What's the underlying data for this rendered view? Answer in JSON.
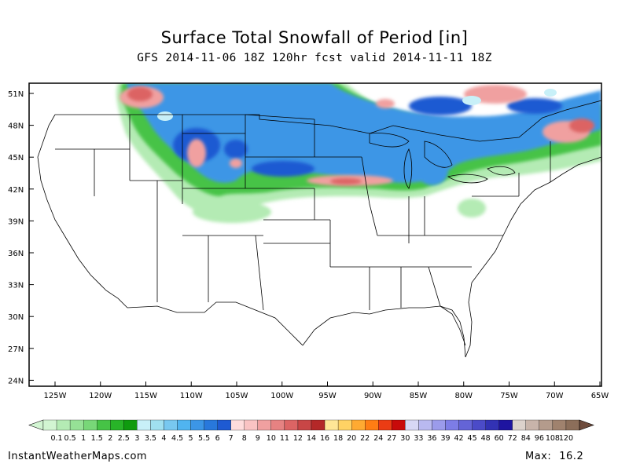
{
  "title": "Surface Total Snowfall of Period [in]",
  "subtitle": "GFS 2014-11-06 18Z 120hr fcst valid 2014-11-11 18Z",
  "footer": {
    "credit": "InstantWeatherMaps.com",
    "max_label": "Max:",
    "max_value": "16.2"
  },
  "map": {
    "lat_labels": [
      "51N",
      "48N",
      "45N",
      "42N",
      "39N",
      "36N",
      "33N",
      "30N",
      "27N",
      "24N"
    ],
    "lon_labels": [
      "125W",
      "120W",
      "115W",
      "110W",
      "105W",
      "100W",
      "95W",
      "90W",
      "85W",
      "80W",
      "75W",
      "70W",
      "65W"
    ]
  },
  "legend": {
    "labels": [
      "0.1",
      "0.5",
      "1",
      "1.5",
      "2",
      "2.5",
      "3",
      "3.5",
      "4",
      "4.5",
      "5",
      "5.5",
      "6",
      "7",
      "8",
      "9",
      "10",
      "11",
      "12",
      "14",
      "16",
      "18",
      "20",
      "22",
      "24",
      "27",
      "30",
      "33",
      "36",
      "39",
      "42",
      "45",
      "48",
      "60",
      "72",
      "84",
      "96",
      "108",
      "120"
    ],
    "colors": [
      "#d2f5d2",
      "#b4ebb4",
      "#96e196",
      "#78d778",
      "#46c346",
      "#28b428",
      "#0f9b0f",
      "#c8f0f8",
      "#a0e0f0",
      "#78c8f0",
      "#50b4f0",
      "#3c96e6",
      "#2878dc",
      "#1e5ad2",
      "#ffdcdc",
      "#fac3c3",
      "#f0a0a0",
      "#e68282",
      "#dc6464",
      "#c84646",
      "#b42828",
      "#ffe696",
      "#ffd264",
      "#ffaa32",
      "#ff7d14",
      "#eb3c14",
      "#c80a0a",
      "#d7d7f5",
      "#b9b9f0",
      "#9b9beb",
      "#7d7de6",
      "#6464d7",
      "#4b4bc8",
      "#3232b4",
      "#1e14a0",
      "#dcd2cc",
      "#c8b4aa",
      "#b49b8c",
      "#a0826e",
      "#8c6e5a"
    ]
  }
}
